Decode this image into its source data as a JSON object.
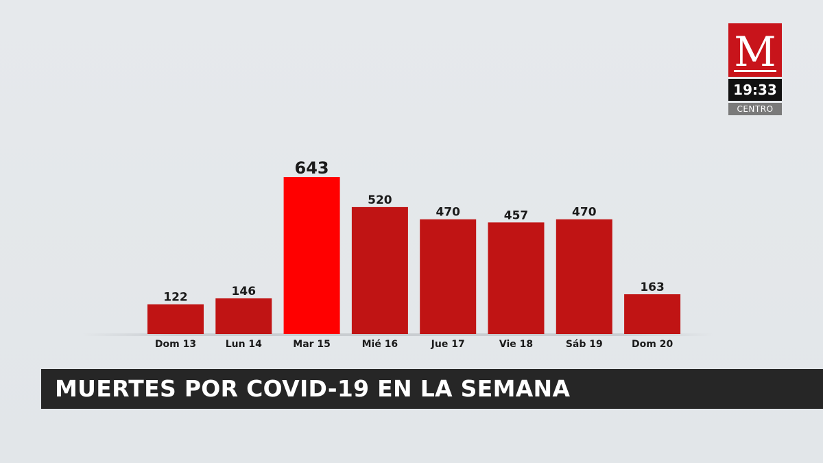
{
  "chart_data": {
    "type": "bar",
    "categories": [
      "Dom 13",
      "Lun 14",
      "Mar 15",
      "Mié 16",
      "Jue 17",
      "Vie 18",
      "Sáb 19",
      "Dom 20"
    ],
    "values": [
      122,
      146,
      643,
      520,
      470,
      457,
      470,
      163
    ],
    "title": "MUERTES POR COVID-19 EN LA SEMANA",
    "xlabel": "",
    "ylabel": "",
    "ylim": [
      0,
      700
    ],
    "grid": false,
    "legend": "none",
    "highlight_index": 2,
    "colors": {
      "bar": "#c01414",
      "highlight": "#ff0000",
      "label": "#1a1a1a"
    }
  },
  "logo": {
    "letter": "M",
    "time": "19:33",
    "zone": "CENTRO",
    "color": "#c8141b"
  },
  "banner": {
    "background": "#262626",
    "text_color": "#ffffff"
  }
}
